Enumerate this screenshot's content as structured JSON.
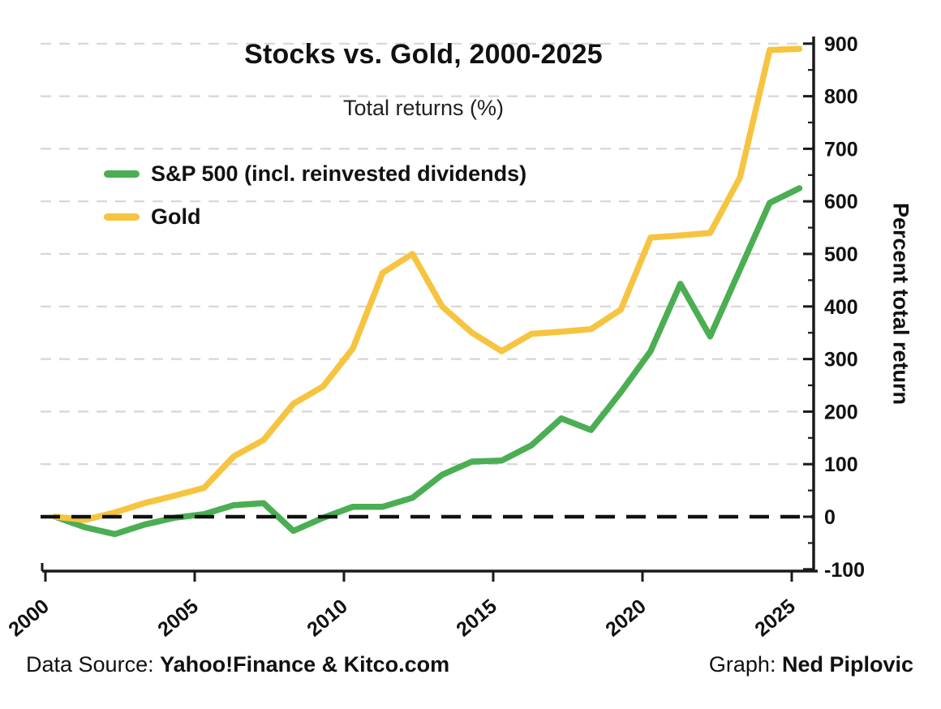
{
  "chart_data": {
    "type": "line",
    "title": "Stocks vs. Gold, 2000-2025",
    "subtitle": "Total returns (%)",
    "ylabel": "Percent total return",
    "xlabel": "",
    "x": [
      2000,
      2001,
      2002,
      2003,
      2004,
      2005,
      2006,
      2007,
      2008,
      2009,
      2010,
      2011,
      2012,
      2013,
      2014,
      2015,
      2016,
      2017,
      2018,
      2019,
      2020,
      2021,
      2022,
      2023,
      2024,
      2025
    ],
    "series": [
      {
        "name": "S&P 500 (incl. reinvested dividends)",
        "color": "#4bae53",
        "values": [
          0,
          -20,
          -33,
          -15,
          -2,
          5,
          22,
          26,
          -27,
          -2,
          19,
          19,
          36,
          80,
          105,
          107,
          136,
          187,
          165,
          237,
          315,
          443,
          343,
          470,
          597,
          625
        ]
      },
      {
        "name": "Gold",
        "color": "#f6c440",
        "values": [
          0,
          -6,
          8,
          26,
          40,
          55,
          115,
          146,
          215,
          248,
          320,
          464,
          500,
          400,
          350,
          315,
          348,
          352,
          357,
          394,
          531,
          535,
          540,
          645,
          888,
          890
        ]
      }
    ],
    "ylim": [
      -100,
      900
    ],
    "yticks": [
      -100,
      0,
      100,
      200,
      300,
      400,
      500,
      600,
      700,
      800,
      900
    ],
    "ytick_minor_step": 50,
    "xticks": [
      2000,
      2005,
      2010,
      2015,
      2020,
      2025
    ],
    "grid": "horizontal-dashed",
    "zero_line": "black-dashed",
    "legend_position": "upper-left",
    "y_axis_side": "right"
  },
  "footer": {
    "source_prefix": "Data Source: ",
    "source": "Yahoo!Finance & Kitco.com",
    "credit_prefix": "Graph: ",
    "credit": "Ned Piplovic"
  },
  "colors": {
    "sp500": "#4bae53",
    "gold": "#f6c440",
    "axis": "#1a1a1a",
    "gridline": "#d6d6d6",
    "zero_line": "#111111",
    "background": "#ffffff",
    "text": "#111111"
  }
}
